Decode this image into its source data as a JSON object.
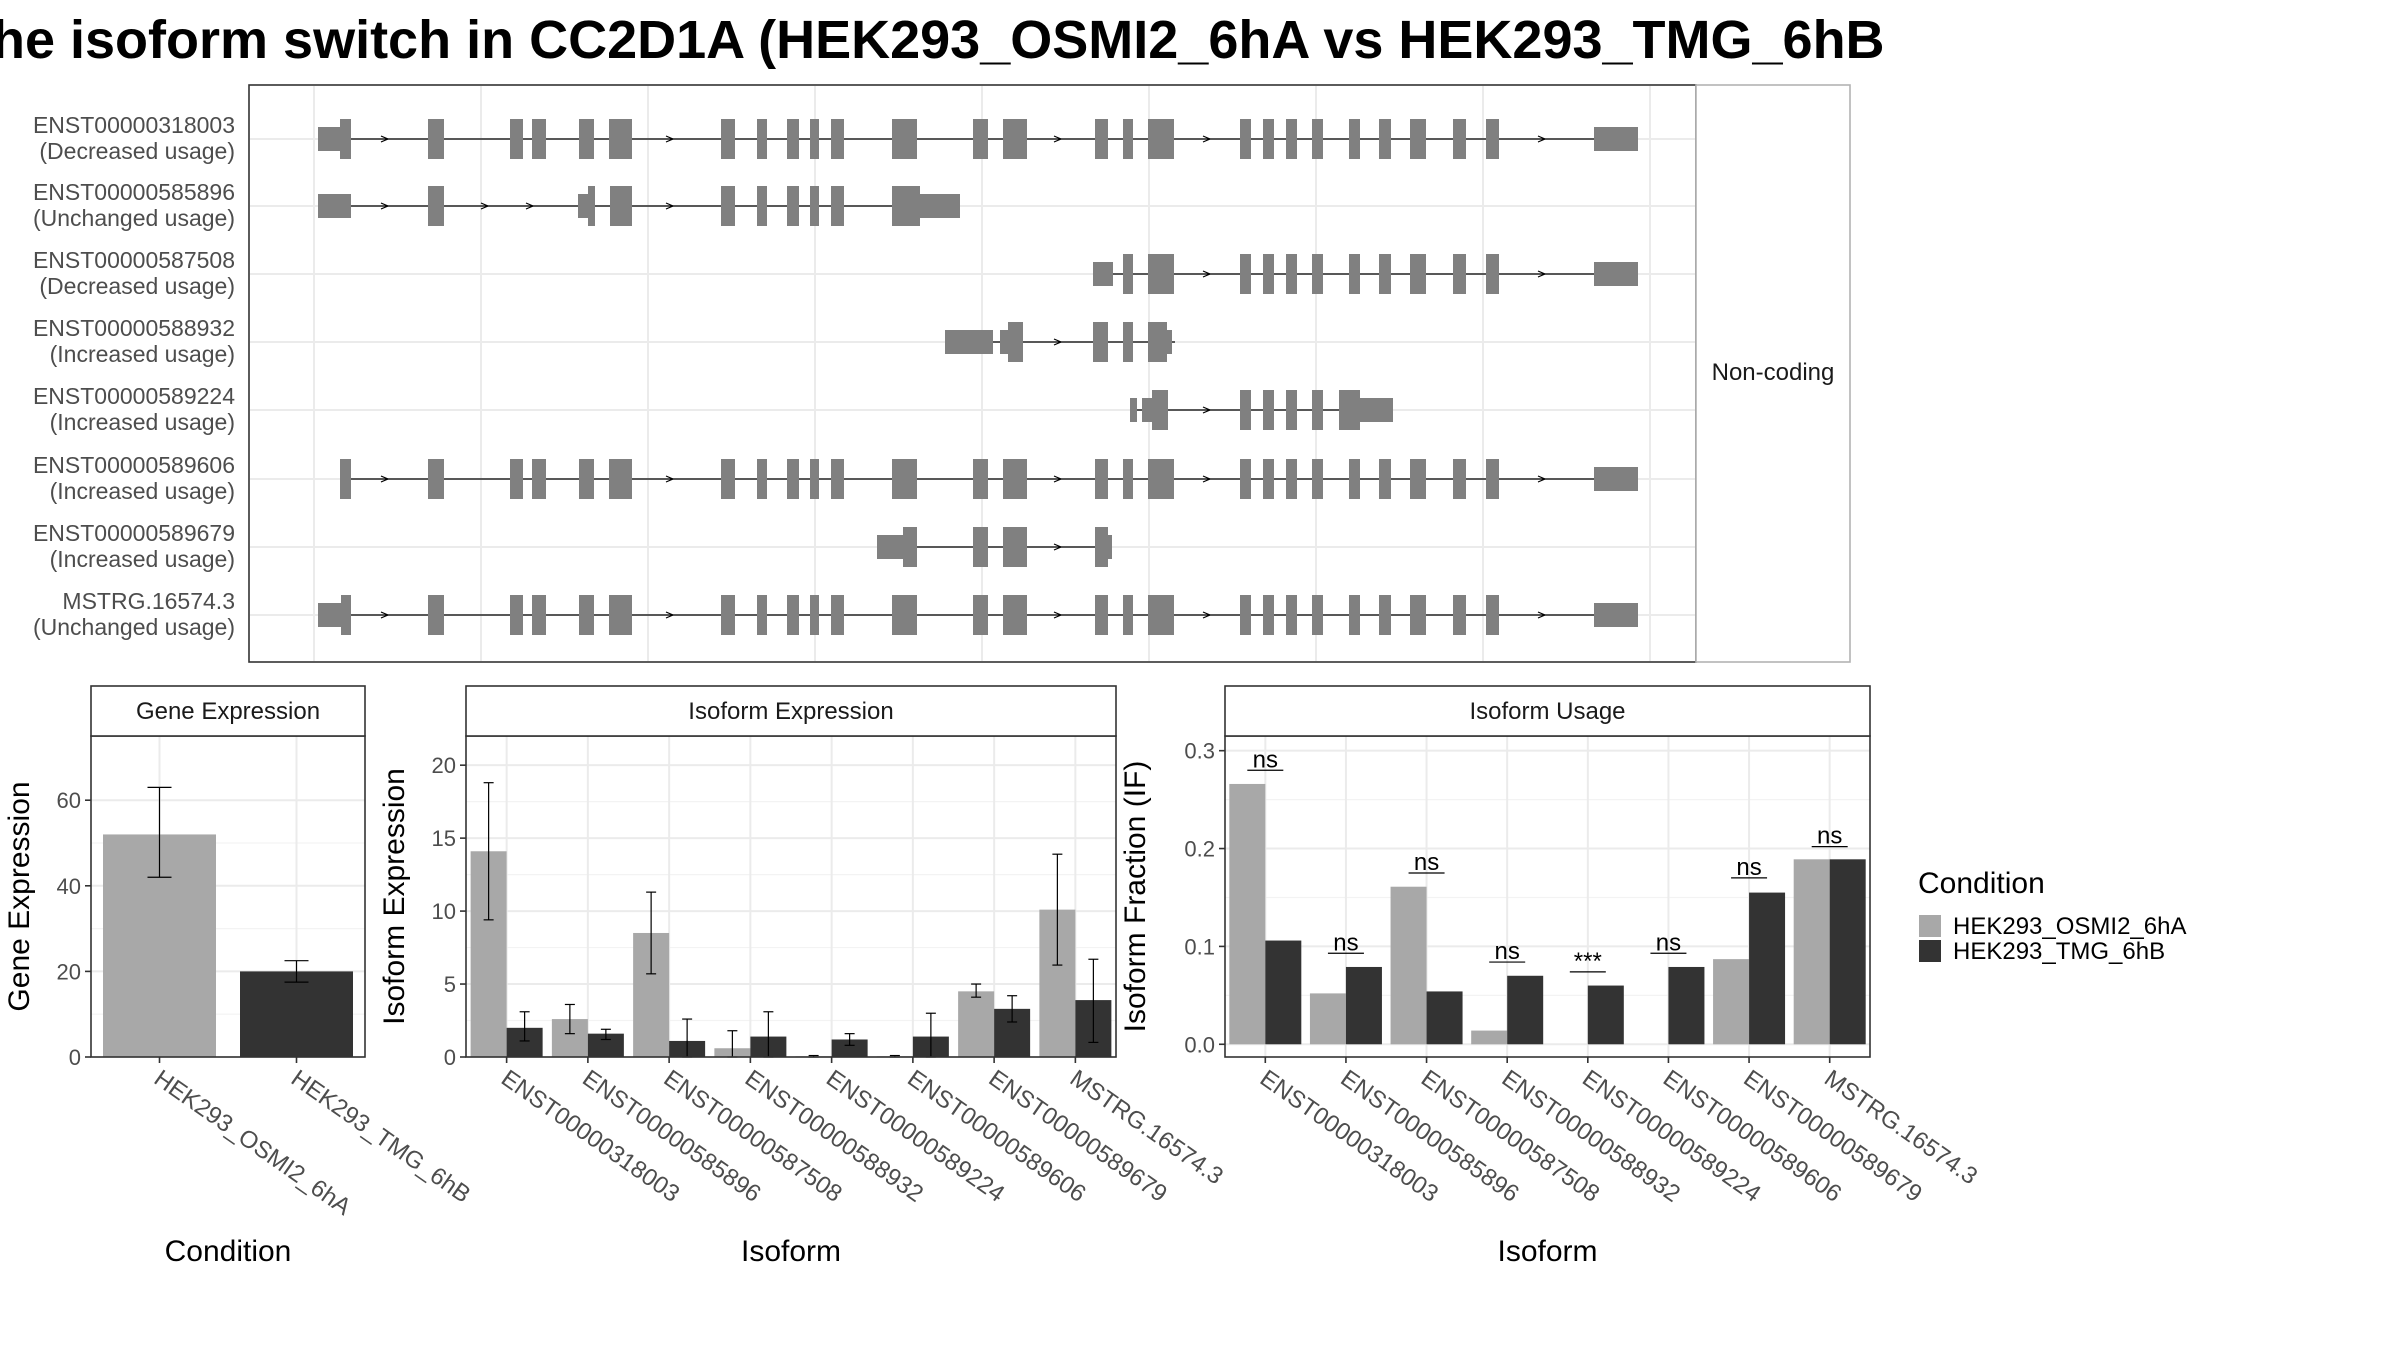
{
  "title": "he isoform switch in CC2D1A (HEK293_OSMI2_6hA vs HEK293_TMG_6hB",
  "colors": {
    "cond_a": "#a8a8a8",
    "cond_b": "#333333",
    "exon": "#808080",
    "panel_border": "#333333",
    "strip_fill": "#ffffff",
    "grid": "#ebebeb"
  },
  "structure": {
    "strip_label": "Non-coding",
    "isoforms": [
      {
        "id": "ENST00000318003",
        "usage": "(Decreased usage)"
      },
      {
        "id": "ENST00000585896",
        "usage": "(Unchanged usage)"
      },
      {
        "id": "ENST00000587508",
        "usage": "(Decreased usage)"
      },
      {
        "id": "ENST00000588932",
        "usage": "(Increased usage)"
      },
      {
        "id": "ENST00000589224",
        "usage": "(Increased usage)"
      },
      {
        "id": "ENST00000589606",
        "usage": "(Increased usage)"
      },
      {
        "id": "ENST00000589679",
        "usage": "(Increased usage)"
      },
      {
        "id": "MSTRG.16574.3",
        "usage": "(Unchanged usage)"
      }
    ]
  },
  "legend": {
    "title": "Condition",
    "items": [
      "HEK293_OSMI2_6hA",
      "HEK293_TMG_6hB"
    ]
  },
  "chart_data": [
    {
      "type": "bar",
      "title": "Gene Expression",
      "xlabel": "Condition",
      "ylabel": "Gene Expression",
      "ylim": [
        0,
        75
      ],
      "yticks": [
        "0",
        "20",
        "40",
        "60"
      ],
      "categories": [
        "HEK293_OSMI2_6hA",
        "HEK293_TMG_6hB"
      ],
      "values": [
        52,
        20
      ],
      "error_low": [
        42,
        17.5
      ],
      "error_high": [
        63,
        22.5
      ]
    },
    {
      "type": "bar",
      "title": "Isoform Expression",
      "xlabel": "Isoform",
      "ylabel": "Isoform Expression",
      "ylim": [
        0,
        22
      ],
      "yticks": [
        "0",
        "5",
        "10",
        "15",
        "20"
      ],
      "categories": [
        "ENST00000318003",
        "ENST00000585896",
        "ENST00000587508",
        "ENST00000588932",
        "ENST00000589224",
        "ENST00000589606",
        "ENST00000589679",
        "MSTRG.16574.3"
      ],
      "series": [
        {
          "name": "HEK293_OSMI2_6hA",
          "values": [
            14.1,
            2.6,
            8.5,
            0.6,
            0.05,
            0.05,
            4.5,
            10.1
          ],
          "error_low": [
            9.4,
            1.6,
            5.7,
            0.0,
            0.0,
            0.0,
            4.1,
            6.3
          ],
          "error_high": [
            18.8,
            3.6,
            11.3,
            1.8,
            0.1,
            0.1,
            5.0,
            13.9
          ]
        },
        {
          "name": "HEK293_TMG_6hB",
          "values": [
            2.0,
            1.6,
            1.1,
            1.4,
            1.2,
            1.4,
            3.3,
            3.9
          ],
          "error_low": [
            1.1,
            1.2,
            0.0,
            0.0,
            0.8,
            0.0,
            2.4,
            1.0
          ],
          "error_high": [
            3.1,
            1.9,
            2.6,
            3.1,
            1.6,
            3.0,
            4.2,
            6.7
          ]
        }
      ]
    },
    {
      "type": "bar",
      "title": "Isoform Usage",
      "xlabel": "Isoform",
      "ylabel": "Isoform Fraction (IF)",
      "ylim": [
        -0.013,
        0.315
      ],
      "yticks": [
        "0.0",
        "0.1",
        "0.2",
        "0.3"
      ],
      "categories": [
        "ENST00000318003",
        "ENST00000585896",
        "ENST00000587508",
        "ENST00000588932",
        "ENST00000589224",
        "ENST00000589606",
        "ENST00000589679",
        "MSTRG.16574.3"
      ],
      "series": [
        {
          "name": "HEK293_OSMI2_6hA",
          "values": [
            0.266,
            0.052,
            0.161,
            0.014,
            0.0,
            0.0,
            0.087,
            0.189
          ]
        },
        {
          "name": "HEK293_TMG_6hB",
          "values": [
            0.106,
            0.079,
            0.054,
            0.07,
            0.06,
            0.079,
            0.155,
            0.189
          ]
        }
      ],
      "significance": [
        "ns",
        "ns",
        "ns",
        "ns",
        "***",
        "ns",
        "ns",
        "ns"
      ],
      "significance_level": [
        0.28,
        0.093,
        0.175,
        0.084,
        0.074,
        0.093,
        0.17,
        0.202
      ]
    }
  ]
}
